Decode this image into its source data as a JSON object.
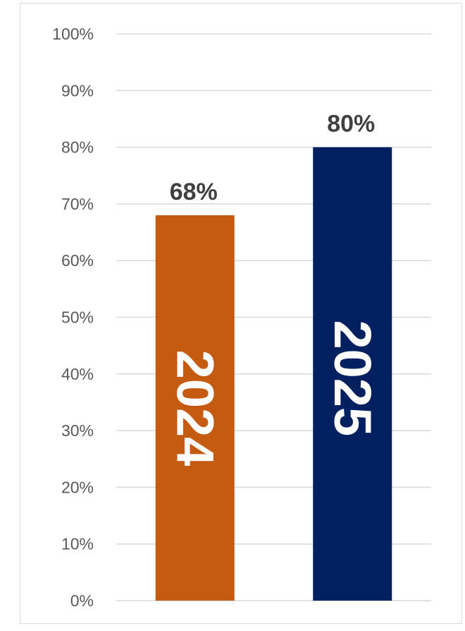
{
  "chart_data": {
    "type": "bar",
    "categories": [
      "2024",
      "2025"
    ],
    "values": [
      68,
      80
    ],
    "data_labels": [
      "68%",
      "80%"
    ],
    "colors": [
      "#c55a11",
      "#002060"
    ],
    "ylim": [
      0,
      100
    ],
    "y_ticks": [
      0,
      10,
      20,
      30,
      40,
      50,
      60,
      70,
      80,
      90,
      100
    ],
    "y_tick_labels": [
      "0%",
      "10%",
      "20%",
      "30%",
      "40%",
      "50%",
      "60%",
      "70%",
      "80%",
      "90%",
      "100%"
    ],
    "grid": true,
    "legend": "none",
    "title": "",
    "xlabel": "",
    "ylabel": ""
  }
}
